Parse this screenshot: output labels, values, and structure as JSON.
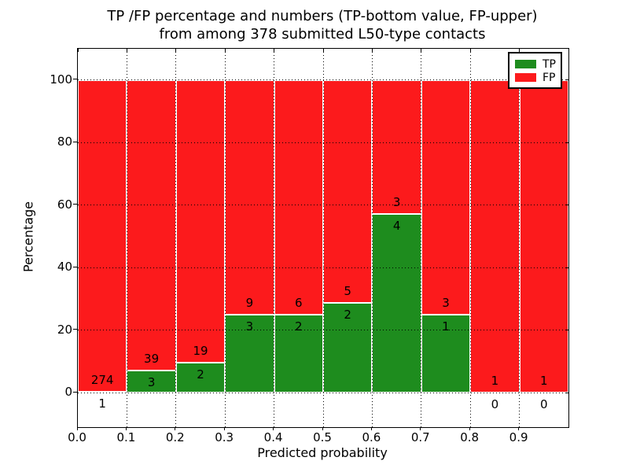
{
  "title": {
    "line1": "TP /FP percentage and numbers (TP-bottom value, FP-upper)",
    "line2": "from among 378 submitted L50-type contacts"
  },
  "axes": {
    "xlabel": "Predicted probability",
    "ylabel": "Percentage",
    "xtick_labels": [
      "0.0",
      "0.1",
      "0.2",
      "0.3",
      "0.4",
      "0.5",
      "0.6",
      "0.7",
      "0.8",
      "0.9"
    ],
    "ytick_labels": [
      "0",
      "20",
      "40",
      "60",
      "80",
      "100"
    ],
    "ytick_values": [
      0,
      20,
      40,
      60,
      80,
      100
    ]
  },
  "legend": {
    "items": [
      {
        "label": "TP",
        "color": "#1e8c1e"
      },
      {
        "label": "FP",
        "color": "#fc1a1c"
      }
    ]
  },
  "chart_data": {
    "type": "bar",
    "stacked": true,
    "normalized": "percent",
    "title": "TP /FP percentage and numbers (TP-bottom value, FP-upper) from among 378 submitted L50-type contacts",
    "xlabel": "Predicted probability",
    "ylabel": "Percentage",
    "total_contacts": 378,
    "bin_edges": [
      0.0,
      0.1,
      0.2,
      0.3,
      0.4,
      0.5,
      0.6,
      0.7,
      0.8,
      0.9,
      1.0
    ],
    "categories": [
      "0.0-0.1",
      "0.1-0.2",
      "0.2-0.3",
      "0.3-0.4",
      "0.4-0.5",
      "0.5-0.6",
      "0.6-0.7",
      "0.7-0.8",
      "0.8-0.9",
      "0.9-1.0"
    ],
    "series": [
      {
        "name": "TP",
        "color": "#1e8c1e",
        "values": [
          1,
          3,
          2,
          3,
          2,
          2,
          4,
          1,
          0,
          0
        ]
      },
      {
        "name": "FP",
        "color": "#fc1a1c",
        "values": [
          274,
          39,
          19,
          9,
          6,
          5,
          3,
          3,
          1,
          1
        ]
      }
    ],
    "tp_percent_per_bin": [
      0.36,
      7.14,
      9.52,
      25.0,
      25.0,
      28.57,
      57.14,
      25.0,
      0.0,
      0.0
    ],
    "xlim": [
      0.0,
      1.0
    ],
    "ylim": [
      -11,
      110
    ],
    "yticks": [
      0,
      20,
      40,
      60,
      80,
      100
    ],
    "xticks": [
      0.0,
      0.1,
      0.2,
      0.3,
      0.4,
      0.5,
      0.6,
      0.7,
      0.8,
      0.9
    ],
    "grid": true,
    "grid_linestyle": "dotted",
    "bar_edge_color": "#ffffff",
    "legend_position": "upper right"
  }
}
